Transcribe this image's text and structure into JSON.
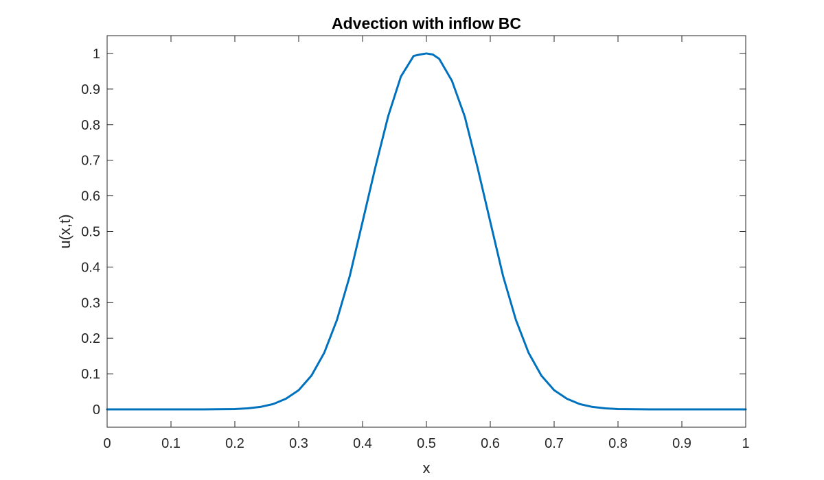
{
  "chart_data": {
    "type": "line",
    "title": "Advection with inflow BC",
    "xlabel": "x",
    "ylabel": "u(x,t)",
    "xlim": [
      0,
      1
    ],
    "ylim": [
      -0.05,
      1.05
    ],
    "xticks": [
      "0",
      "0.1",
      "0.2",
      "0.3",
      "0.4",
      "0.5",
      "0.6",
      "0.7",
      "0.8",
      "0.9",
      "1"
    ],
    "xtick_values": [
      0,
      0.1,
      0.2,
      0.3,
      0.4,
      0.5,
      0.6,
      0.7,
      0.8,
      0.9,
      1
    ],
    "yticks": [
      "0",
      "0.1",
      "0.2",
      "0.3",
      "0.4",
      "0.5",
      "0.6",
      "0.7",
      "0.8",
      "0.9",
      "1"
    ],
    "ytick_values": [
      0,
      0.1,
      0.2,
      0.3,
      0.4,
      0.5,
      0.6,
      0.7,
      0.8,
      0.9,
      1
    ],
    "grid": false,
    "box": true,
    "colors": {
      "line": "#0072BD",
      "axes": "#262626",
      "background": "#ffffff"
    },
    "series": [
      {
        "x": [
          0,
          0.05,
          0.1,
          0.15,
          0.2,
          0.22,
          0.24,
          0.26,
          0.28,
          0.3,
          0.32,
          0.34,
          0.36,
          0.38,
          0.4,
          0.42,
          0.44,
          0.46,
          0.48,
          0.49,
          0.5,
          0.51,
          0.52,
          0.54,
          0.56,
          0.58,
          0.6,
          0.62,
          0.64,
          0.66,
          0.68,
          0.7,
          0.72,
          0.74,
          0.76,
          0.78,
          0.8,
          0.85,
          0.9,
          0.95,
          1
        ],
        "y": [
          0,
          0,
          0,
          0,
          0.001,
          0.003,
          0.007,
          0.015,
          0.03,
          0.054,
          0.095,
          0.159,
          0.252,
          0.375,
          0.527,
          0.68,
          0.823,
          0.935,
          0.993,
          0.997,
          1.0,
          0.997,
          0.985,
          0.923,
          0.823,
          0.68,
          0.527,
          0.375,
          0.252,
          0.159,
          0.095,
          0.054,
          0.03,
          0.015,
          0.007,
          0.003,
          0.001,
          0,
          0,
          0,
          0
        ]
      }
    ]
  }
}
